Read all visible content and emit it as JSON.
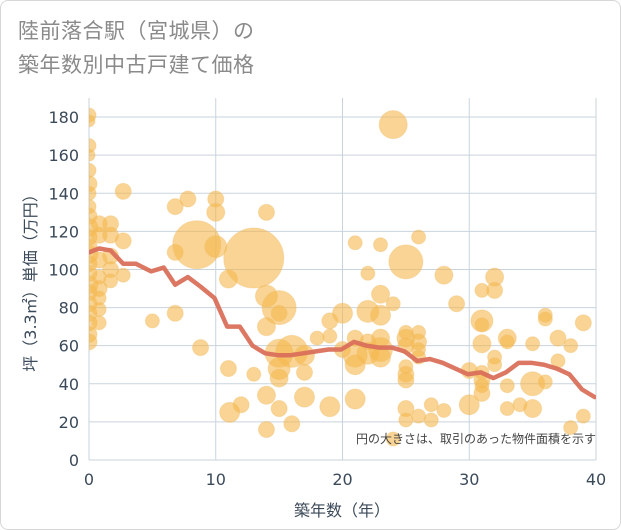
{
  "title": {
    "line1": "陸前落合駅（宮城県）の",
    "line2": "築年数別中古戸建て価格"
  },
  "colors": {
    "bubble": "#f5b84d",
    "bubble_stroke": "#f0c070",
    "line": "#d9705a",
    "grid": "#c9d3de",
    "axis_text": "#3b4a5a"
  },
  "chart_data": {
    "type": "scatter",
    "xlabel": "築年数（年）",
    "ylabel": "坪（3.3㎡）単価（万円）",
    "xlim": [
      0,
      40
    ],
    "ylim": [
      0,
      190
    ],
    "xticks": [
      0,
      10,
      20,
      30,
      40
    ],
    "yticks": [
      0,
      20,
      40,
      60,
      80,
      100,
      120,
      140,
      160,
      180
    ],
    "annotation": "円の大きさは、取引のあった物件面積を示す",
    "grid": true,
    "bubbles": [
      {
        "x": 0,
        "y": 181,
        "s": 7
      },
      {
        "x": 0,
        "y": 178,
        "s": 6
      },
      {
        "x": 0,
        "y": 165,
        "s": 7
      },
      {
        "x": 0,
        "y": 160,
        "s": 6
      },
      {
        "x": 0,
        "y": 152,
        "s": 7
      },
      {
        "x": 0,
        "y": 145,
        "s": 8
      },
      {
        "x": 0,
        "y": 140,
        "s": 7
      },
      {
        "x": 0,
        "y": 133,
        "s": 7
      },
      {
        "x": 0,
        "y": 128,
        "s": 8
      },
      {
        "x": 0,
        "y": 122,
        "s": 9
      },
      {
        "x": 0,
        "y": 117,
        "s": 8
      },
      {
        "x": 0,
        "y": 112,
        "s": 8
      },
      {
        "x": 0,
        "y": 108,
        "s": 9
      },
      {
        "x": 0,
        "y": 103,
        "s": 8
      },
      {
        "x": 0,
        "y": 98,
        "s": 8
      },
      {
        "x": 0,
        "y": 92,
        "s": 9
      },
      {
        "x": 0,
        "y": 88,
        "s": 8
      },
      {
        "x": 0,
        "y": 82,
        "s": 8
      },
      {
        "x": 0,
        "y": 77,
        "s": 8
      },
      {
        "x": 0,
        "y": 72,
        "s": 8
      },
      {
        "x": 0,
        "y": 66,
        "s": 8
      },
      {
        "x": 0,
        "y": 62,
        "s": 8
      },
      {
        "x": 0.8,
        "y": 124,
        "s": 8
      },
      {
        "x": 0.8,
        "y": 118,
        "s": 8
      },
      {
        "x": 0.8,
        "y": 105,
        "s": 8
      },
      {
        "x": 0.8,
        "y": 96,
        "s": 7
      },
      {
        "x": 0.8,
        "y": 90,
        "s": 8
      },
      {
        "x": 0.8,
        "y": 85,
        "s": 7
      },
      {
        "x": 0.8,
        "y": 79,
        "s": 7
      },
      {
        "x": 0.8,
        "y": 72,
        "s": 7
      },
      {
        "x": 1.7,
        "y": 124,
        "s": 8
      },
      {
        "x": 1.7,
        "y": 118,
        "s": 8
      },
      {
        "x": 1.7,
        "y": 107,
        "s": 8
      },
      {
        "x": 1.7,
        "y": 100,
        "s": 8
      },
      {
        "x": 1.7,
        "y": 94,
        "s": 7
      },
      {
        "x": 2.7,
        "y": 141,
        "s": 8
      },
      {
        "x": 2.7,
        "y": 115,
        "s": 8
      },
      {
        "x": 2.7,
        "y": 97,
        "s": 7
      },
      {
        "x": 5,
        "y": 73,
        "s": 7
      },
      {
        "x": 6.8,
        "y": 133,
        "s": 8
      },
      {
        "x": 6.8,
        "y": 109,
        "s": 8
      },
      {
        "x": 6.8,
        "y": 77,
        "s": 8
      },
      {
        "x": 7.8,
        "y": 137,
        "s": 8
      },
      {
        "x": 8.5,
        "y": 113,
        "s": 24
      },
      {
        "x": 8.8,
        "y": 59,
        "s": 8
      },
      {
        "x": 10,
        "y": 137,
        "s": 8
      },
      {
        "x": 10,
        "y": 130,
        "s": 9
      },
      {
        "x": 10,
        "y": 112,
        "s": 11
      },
      {
        "x": 11,
        "y": 95,
        "s": 9
      },
      {
        "x": 11,
        "y": 48,
        "s": 8
      },
      {
        "x": 11.1,
        "y": 25,
        "s": 10
      },
      {
        "x": 12,
        "y": 29,
        "s": 8
      },
      {
        "x": 13,
        "y": 106,
        "s": 30
      },
      {
        "x": 13,
        "y": 45,
        "s": 7
      },
      {
        "x": 14,
        "y": 130,
        "s": 8
      },
      {
        "x": 14,
        "y": 86,
        "s": 11
      },
      {
        "x": 14,
        "y": 70,
        "s": 9
      },
      {
        "x": 14,
        "y": 34,
        "s": 9
      },
      {
        "x": 14,
        "y": 16,
        "s": 8
      },
      {
        "x": 15,
        "y": 80,
        "s": 17
      },
      {
        "x": 15,
        "y": 77,
        "s": 8
      },
      {
        "x": 15,
        "y": 56,
        "s": 14
      },
      {
        "x": 15,
        "y": 48,
        "s": 11
      },
      {
        "x": 15,
        "y": 43,
        "s": 9
      },
      {
        "x": 15,
        "y": 27,
        "s": 8
      },
      {
        "x": 16,
        "y": 57,
        "s": 16
      },
      {
        "x": 16,
        "y": 19,
        "s": 8
      },
      {
        "x": 17,
        "y": 55,
        "s": 10
      },
      {
        "x": 17,
        "y": 46,
        "s": 8
      },
      {
        "x": 17,
        "y": 33,
        "s": 10
      },
      {
        "x": 18,
        "y": 64,
        "s": 7
      },
      {
        "x": 19,
        "y": 73,
        "s": 8
      },
      {
        "x": 19,
        "y": 65,
        "s": 7
      },
      {
        "x": 19,
        "y": 28,
        "s": 10
      },
      {
        "x": 20,
        "y": 77,
        "s": 10
      },
      {
        "x": 20,
        "y": 58,
        "s": 8
      },
      {
        "x": 21,
        "y": 114,
        "s": 7
      },
      {
        "x": 21,
        "y": 64,
        "s": 8
      },
      {
        "x": 21,
        "y": 55,
        "s": 12
      },
      {
        "x": 21,
        "y": 50,
        "s": 10
      },
      {
        "x": 21,
        "y": 32,
        "s": 10
      },
      {
        "x": 22,
        "y": 98,
        "s": 7
      },
      {
        "x": 22,
        "y": 78,
        "s": 11
      },
      {
        "x": 22,
        "y": 62,
        "s": 8
      },
      {
        "x": 22,
        "y": 56,
        "s": 11
      },
      {
        "x": 23,
        "y": 113,
        "s": 7
      },
      {
        "x": 23,
        "y": 87,
        "s": 9
      },
      {
        "x": 23,
        "y": 76,
        "s": 10
      },
      {
        "x": 23,
        "y": 64,
        "s": 9
      },
      {
        "x": 23,
        "y": 58,
        "s": 12
      },
      {
        "x": 23,
        "y": 54,
        "s": 10
      },
      {
        "x": 24,
        "y": 176,
        "s": 14
      },
      {
        "x": 24,
        "y": 82,
        "s": 7
      },
      {
        "x": 24,
        "y": 11,
        "s": 7
      },
      {
        "x": 25,
        "y": 104,
        "s": 17
      },
      {
        "x": 25,
        "y": 67,
        "s": 7
      },
      {
        "x": 25,
        "y": 64,
        "s": 9
      },
      {
        "x": 25,
        "y": 60,
        "s": 8
      },
      {
        "x": 25,
        "y": 49,
        "s": 7
      },
      {
        "x": 25,
        "y": 45,
        "s": 8
      },
      {
        "x": 25,
        "y": 42,
        "s": 8
      },
      {
        "x": 25,
        "y": 27,
        "s": 8
      },
      {
        "x": 25,
        "y": 21,
        "s": 7
      },
      {
        "x": 26,
        "y": 117,
        "s": 7
      },
      {
        "x": 26,
        "y": 67,
        "s": 7
      },
      {
        "x": 26,
        "y": 62,
        "s": 8
      },
      {
        "x": 26,
        "y": 58,
        "s": 7
      },
      {
        "x": 26,
        "y": 54,
        "s": 7
      },
      {
        "x": 26,
        "y": 23,
        "s": 7
      },
      {
        "x": 27,
        "y": 29,
        "s": 7
      },
      {
        "x": 27,
        "y": 21,
        "s": 7
      },
      {
        "x": 28,
        "y": 97,
        "s": 9
      },
      {
        "x": 28,
        "y": 26,
        "s": 7
      },
      {
        "x": 29,
        "y": 82,
        "s": 8
      },
      {
        "x": 30,
        "y": 47,
        "s": 8
      },
      {
        "x": 30,
        "y": 29,
        "s": 10
      },
      {
        "x": 31,
        "y": 89,
        "s": 7
      },
      {
        "x": 31,
        "y": 73,
        "s": 11
      },
      {
        "x": 31,
        "y": 71,
        "s": 7
      },
      {
        "x": 31,
        "y": 61,
        "s": 9
      },
      {
        "x": 31,
        "y": 46,
        "s": 7
      },
      {
        "x": 31,
        "y": 42,
        "s": 8
      },
      {
        "x": 31,
        "y": 39,
        "s": 7
      },
      {
        "x": 31,
        "y": 35,
        "s": 8
      },
      {
        "x": 32,
        "y": 96,
        "s": 9
      },
      {
        "x": 32,
        "y": 89,
        "s": 8
      },
      {
        "x": 32,
        "y": 54,
        "s": 7
      },
      {
        "x": 32,
        "y": 50,
        "s": 7
      },
      {
        "x": 33,
        "y": 64,
        "s": 9
      },
      {
        "x": 33,
        "y": 62,
        "s": 7
      },
      {
        "x": 33,
        "y": 39,
        "s": 7
      },
      {
        "x": 33,
        "y": 27,
        "s": 7
      },
      {
        "x": 34,
        "y": 29,
        "s": 7
      },
      {
        "x": 35,
        "y": 61,
        "s": 7
      },
      {
        "x": 35,
        "y": 40,
        "s": 12
      },
      {
        "x": 35,
        "y": 27,
        "s": 9
      },
      {
        "x": 36,
        "y": 76,
        "s": 7
      },
      {
        "x": 36,
        "y": 74,
        "s": 7
      },
      {
        "x": 36,
        "y": 41,
        "s": 7
      },
      {
        "x": 37,
        "y": 64,
        "s": 8
      },
      {
        "x": 37,
        "y": 52,
        "s": 7
      },
      {
        "x": 38,
        "y": 60,
        "s": 7
      },
      {
        "x": 38,
        "y": 17,
        "s": 7
      },
      {
        "x": 39,
        "y": 72,
        "s": 8
      },
      {
        "x": 39,
        "y": 23,
        "s": 7
      }
    ],
    "series": [
      {
        "x": [
          0,
          0.8,
          1.7,
          2.7,
          3.7,
          4.9,
          5.9,
          6.8,
          7.8,
          8.8,
          9.9,
          10.9,
          11.9,
          12.9,
          13.9,
          14.9,
          15.9,
          16.9,
          17.9,
          18.9,
          19.9,
          20.9,
          21.9,
          22.9,
          23.9,
          24.9,
          25.9,
          26.9,
          27.9,
          28.9,
          29.9,
          30.9,
          31.9,
          32.9,
          33.9,
          34.9,
          35.9,
          36.9,
          37.9,
          38.9,
          39.9
        ],
        "values": [
          109,
          111,
          110,
          103,
          103,
          99,
          101,
          92,
          96,
          91,
          85,
          70,
          70,
          60,
          56,
          55,
          55,
          56,
          57,
          58,
          58,
          62,
          60,
          59,
          59,
          57,
          52,
          53,
          51,
          48,
          45,
          46,
          43,
          46,
          51,
          51,
          50,
          48,
          45,
          37,
          33
        ]
      }
    ]
  }
}
